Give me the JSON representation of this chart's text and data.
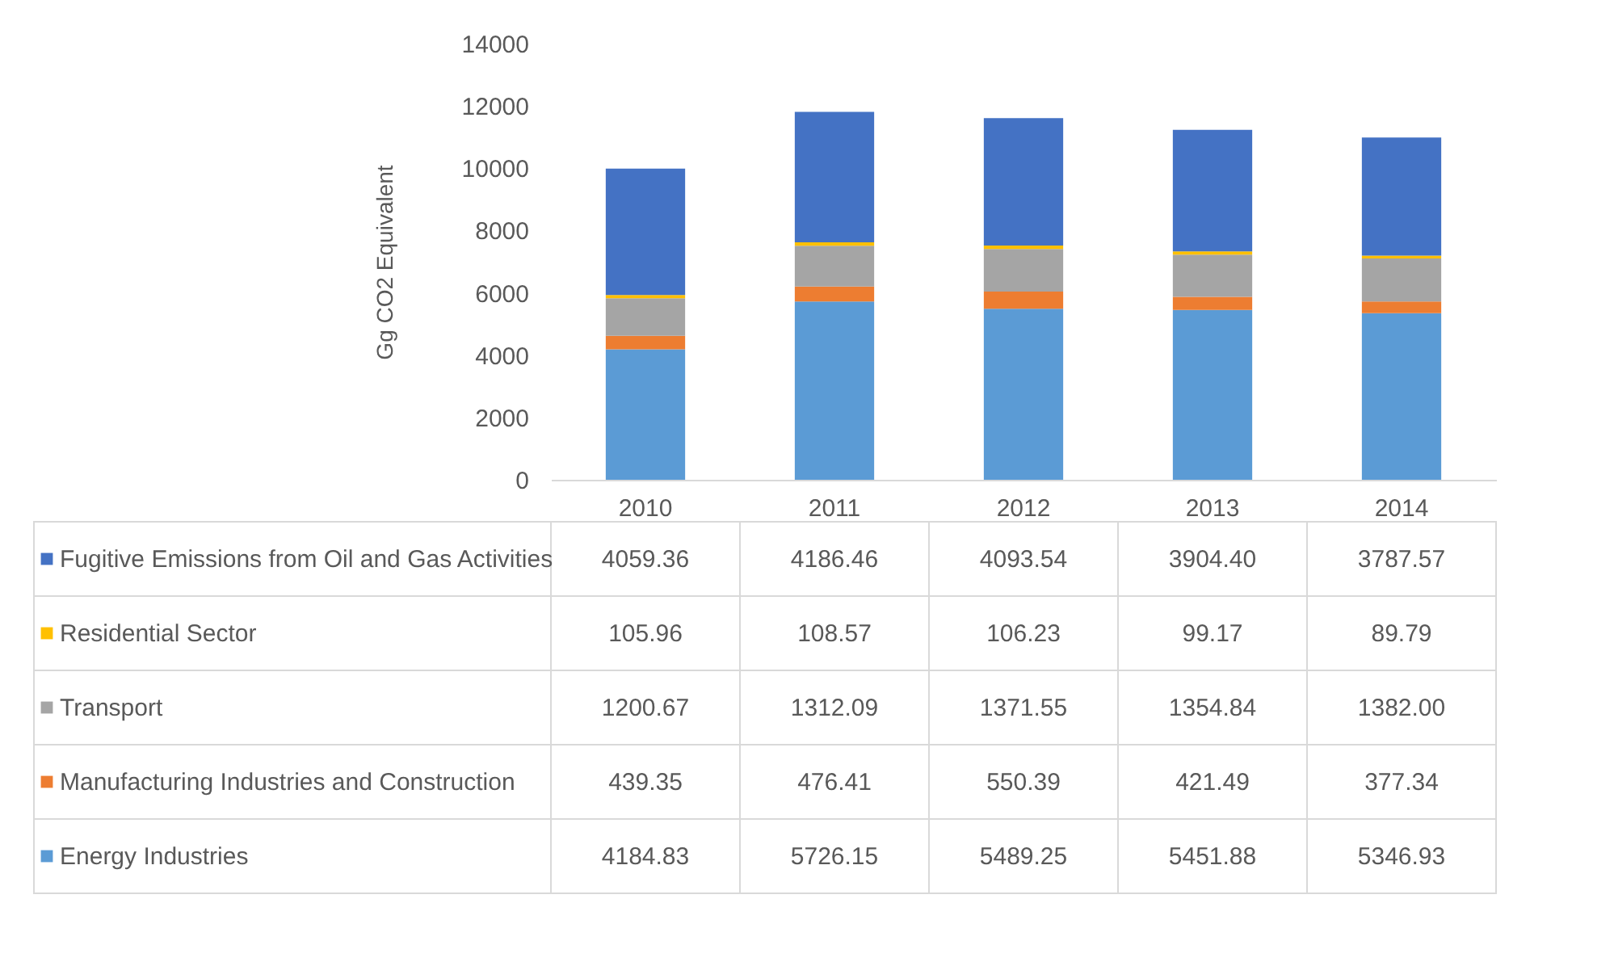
{
  "chart_data": {
    "type": "bar",
    "stacked": true,
    "ylabel": "Gg CO2 Equivalent",
    "categories": [
      "2010",
      "2011",
      "2012",
      "2013",
      "2014"
    ],
    "series": [
      {
        "name": "Energy Industries",
        "color": "#5b9bd5",
        "values": [
          4184.83,
          5726.15,
          5489.25,
          5451.88,
          5346.93
        ],
        "value_labels": [
          "4184.83",
          "5726.15",
          "5489.25",
          "5451.88",
          "5346.93"
        ]
      },
      {
        "name": "Manufacturing Industries and Construction",
        "color": "#ed7d31",
        "values": [
          439.35,
          476.41,
          550.39,
          421.49,
          377.34
        ],
        "value_labels": [
          "439.35",
          "476.41",
          "550.39",
          "421.49",
          "377.34"
        ]
      },
      {
        "name": "Transport",
        "color": "#a5a5a5",
        "values": [
          1200.67,
          1312.09,
          1371.55,
          1354.84,
          1382.0
        ],
        "value_labels": [
          "1200.67",
          "1312.09",
          "1371.55",
          "1354.84",
          "1382.00"
        ]
      },
      {
        "name": "Residential Sector",
        "color": "#ffc000",
        "values": [
          105.96,
          108.57,
          106.23,
          99.17,
          89.79
        ],
        "value_labels": [
          "105.96",
          "108.57",
          "106.23",
          "99.17",
          "89.79"
        ]
      },
      {
        "name": "Fugitive Emissions from Oil and Gas Activities",
        "color": "#4472c4",
        "values": [
          4059.36,
          4186.46,
          4093.54,
          3904.4,
          3787.57
        ],
        "value_labels": [
          "4059.36",
          "4186.46",
          "4093.54",
          "3904.40",
          "3787.57"
        ]
      }
    ],
    "ylim": [
      0,
      14000
    ],
    "yticks": [
      0,
      2000,
      4000,
      6000,
      8000,
      10000,
      12000,
      14000
    ],
    "grid": false,
    "legend": "bottom"
  }
}
